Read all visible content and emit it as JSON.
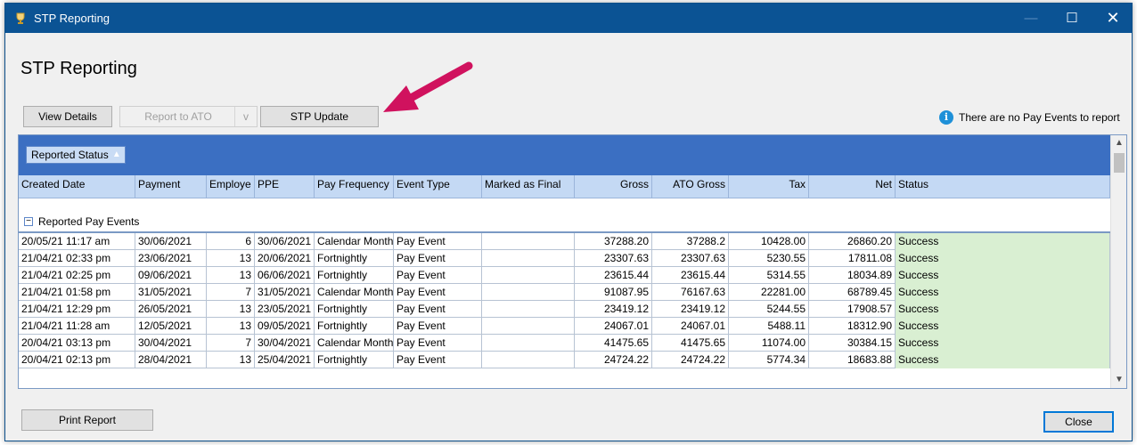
{
  "window": {
    "title": "STP Reporting",
    "minimize": "—",
    "maximize": "☐",
    "close": "✕"
  },
  "page_title": "STP Reporting",
  "toolbar": {
    "view_details": "View Details",
    "report_to_ato": "Report to ATO",
    "report_to_ato_dropdown": "v",
    "stp_update": "STP Update"
  },
  "notice": {
    "icon": "i",
    "text": "There are no Pay Events to report"
  },
  "grid": {
    "group_by": "Reported Status",
    "columns": [
      "Created Date",
      "Payment",
      "Employe",
      "PPE",
      "Pay Frequency",
      "Event Type",
      "Marked as Final",
      "Gross",
      "ATO Gross",
      "Tax",
      "Net",
      "Status"
    ],
    "group_label": "Reported Pay Events",
    "rows": [
      [
        "20/05/21 11:17 am",
        "30/06/2021",
        "6",
        "30/06/2021",
        "Calendar Month",
        "Pay Event",
        "",
        "37288.20",
        "37288.2",
        "10428.00",
        "26860.20",
        "Success"
      ],
      [
        "21/04/21 02:33 pm",
        "23/06/2021",
        "13",
        "20/06/2021",
        "Fortnightly",
        "Pay Event",
        "",
        "23307.63",
        "23307.63",
        "5230.55",
        "17811.08",
        "Success"
      ],
      [
        "21/04/21 02:25 pm",
        "09/06/2021",
        "13",
        "06/06/2021",
        "Fortnightly",
        "Pay Event",
        "",
        "23615.44",
        "23615.44",
        "5314.55",
        "18034.89",
        "Success"
      ],
      [
        "21/04/21 01:58 pm",
        "31/05/2021",
        "7",
        "31/05/2021",
        "Calendar Month",
        "Pay Event",
        "",
        "91087.95",
        "76167.63",
        "22281.00",
        "68789.45",
        "Success"
      ],
      [
        "21/04/21 12:29 pm",
        "26/05/2021",
        "13",
        "23/05/2021",
        "Fortnightly",
        "Pay Event",
        "",
        "23419.12",
        "23419.12",
        "5244.55",
        "17908.57",
        "Success"
      ],
      [
        "21/04/21 11:28 am",
        "12/05/2021",
        "13",
        "09/05/2021",
        "Fortnightly",
        "Pay Event",
        "",
        "24067.01",
        "24067.01",
        "5488.11",
        "18312.90",
        "Success"
      ],
      [
        "20/04/21 03:13 pm",
        "30/04/2021",
        "7",
        "30/04/2021",
        "Calendar Month",
        "Pay Event",
        "",
        "41475.65",
        "41475.65",
        "11074.00",
        "30384.15",
        "Success"
      ],
      [
        "20/04/21 02:13 pm",
        "28/04/2021",
        "13",
        "25/04/2021",
        "Fortnightly",
        "Pay Event",
        "",
        "24724.22",
        "24724.22",
        "5774.34",
        "18683.88",
        "Success"
      ]
    ]
  },
  "footer": {
    "print_report": "Print Report",
    "close": "Close"
  }
}
